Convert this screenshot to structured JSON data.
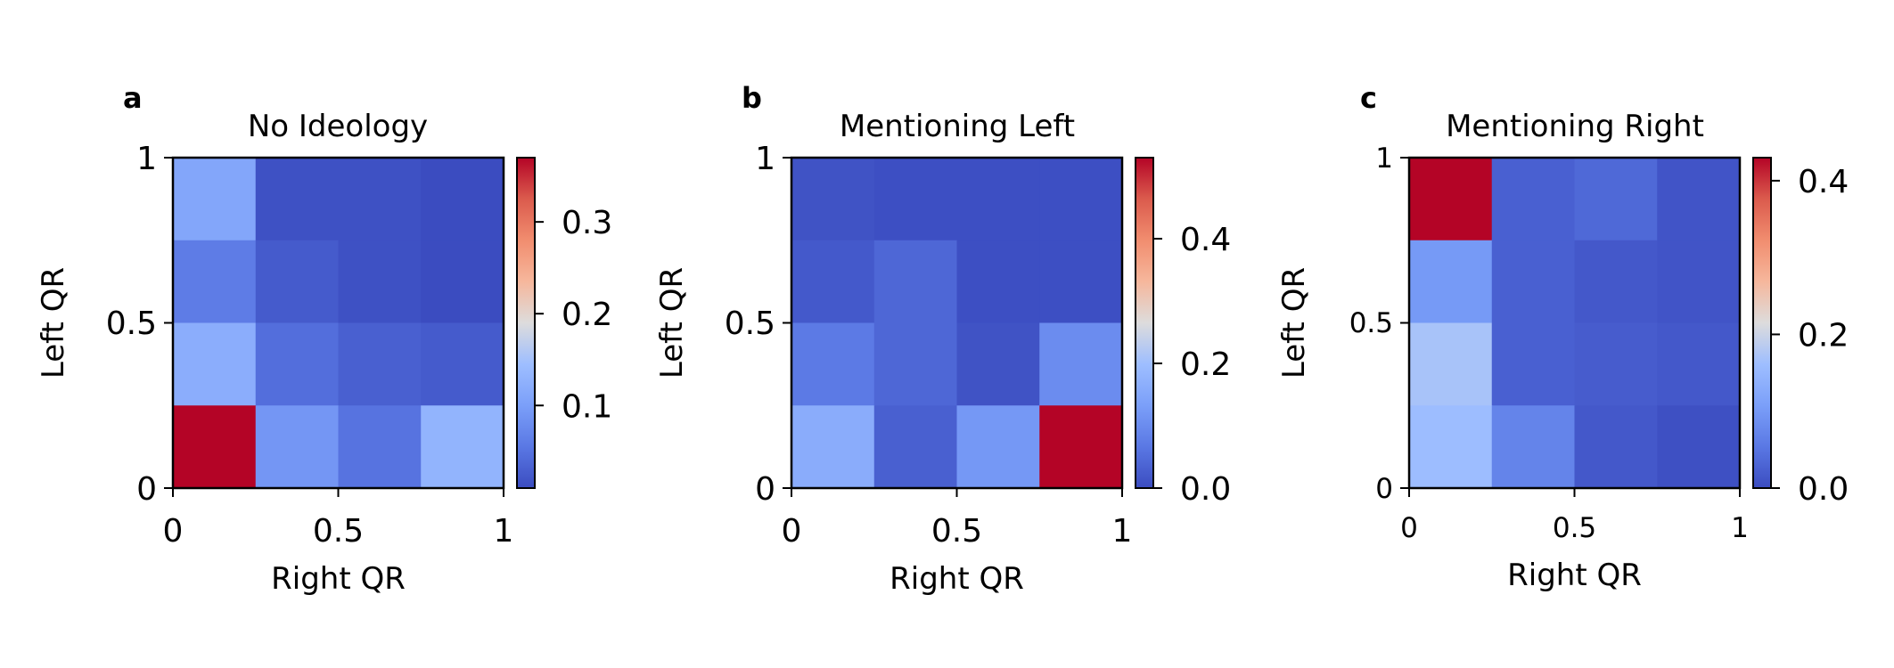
{
  "chart_data": [
    {
      "type": "heatmap",
      "panel_label": "a",
      "title": "No Ideology",
      "xlabel": "Right QR",
      "ylabel": "Left QR",
      "xlim": [
        0,
        1
      ],
      "ylim": [
        0,
        1
      ],
      "x_tick_labels": [
        "0",
        "0.5",
        "1"
      ],
      "y_tick_labels": [
        "0",
        "0.5",
        "1"
      ],
      "grid_note": "rows listed from top (Left QR high) to bottom; columns from left (Right QR 0) to right",
      "values": [
        [
          0.11,
          0.015,
          0.015,
          0.01
        ],
        [
          0.06,
          0.025,
          0.015,
          0.01
        ],
        [
          0.12,
          0.045,
          0.03,
          0.025
        ],
        [
          0.37,
          0.09,
          0.05,
          0.13
        ]
      ],
      "colorbar": {
        "min": 0.01,
        "max": 0.37,
        "ticks": [
          "0.1",
          "0.2",
          "0.3"
        ],
        "tick_values": [
          0.1,
          0.2,
          0.3
        ]
      },
      "colormap": "coolwarm"
    },
    {
      "type": "heatmap",
      "panel_label": "b",
      "title": "Mentioning Left",
      "xlabel": "Right QR",
      "ylabel": "Left QR",
      "xlim": [
        0,
        1
      ],
      "ylim": [
        0,
        1
      ],
      "x_tick_labels": [
        "0",
        "0.5",
        "1"
      ],
      "y_tick_labels": [
        "0",
        "0.5",
        "1"
      ],
      "values": [
        [
          0.01,
          0.005,
          0.005,
          0.005
        ],
        [
          0.02,
          0.04,
          0.005,
          0.005
        ],
        [
          0.07,
          0.04,
          0.01,
          0.1
        ],
        [
          0.16,
          0.03,
          0.12,
          0.53
        ]
      ],
      "colorbar": {
        "min": 0.0,
        "max": 0.53,
        "ticks": [
          "0.0",
          "0.2",
          "0.4"
        ],
        "tick_values": [
          0.0,
          0.2,
          0.4
        ]
      },
      "colormap": "coolwarm"
    },
    {
      "type": "heatmap",
      "panel_label": "c",
      "title": "Mentioning Right",
      "xlabel": "Right QR",
      "ylabel": "Left QR",
      "xlim": [
        0,
        1
      ],
      "ylim": [
        0,
        1
      ],
      "x_tick_labels": [
        "0",
        "0.5",
        "1"
      ],
      "y_tick_labels": [
        "0",
        "0.5",
        "1"
      ],
      "values": [
        [
          0.43,
          0.025,
          0.035,
          0.01
        ],
        [
          0.1,
          0.025,
          0.015,
          0.01
        ],
        [
          0.17,
          0.025,
          0.02,
          0.015
        ],
        [
          0.16,
          0.07,
          0.015,
          0.005
        ]
      ],
      "colorbar": {
        "min": 0.0,
        "max": 0.43,
        "ticks": [
          "0.0",
          "0.2",
          "0.4"
        ],
        "tick_values": [
          0.0,
          0.2,
          0.4
        ]
      },
      "colormap": "coolwarm"
    }
  ]
}
